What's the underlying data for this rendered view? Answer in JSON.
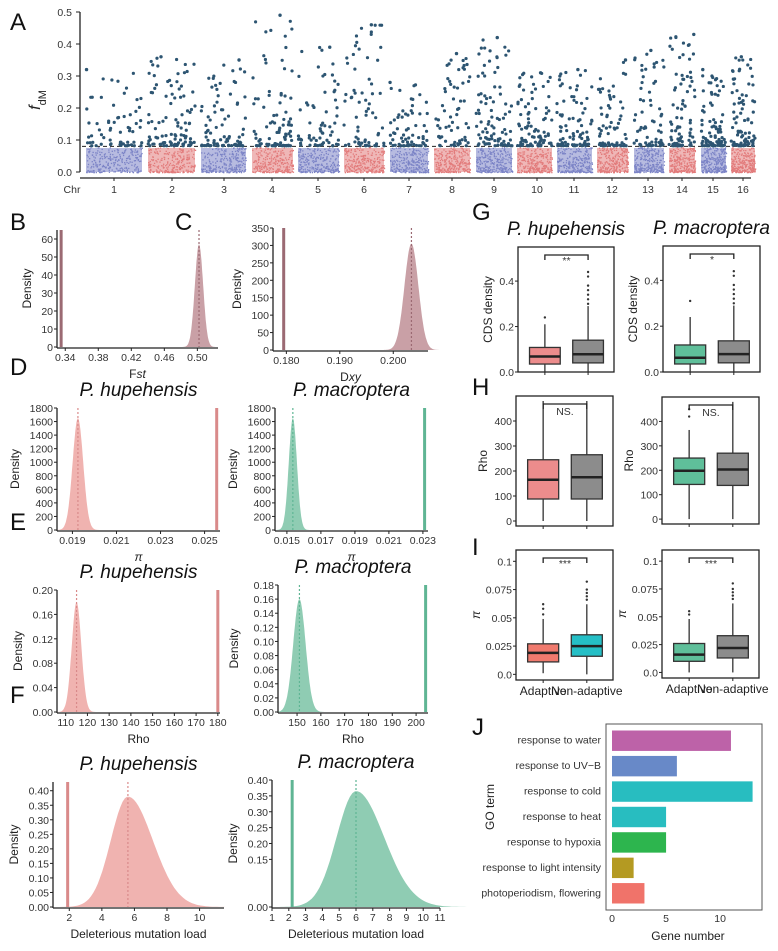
{
  "panel_labels": [
    "A",
    "B",
    "C",
    "D",
    "E",
    "F",
    "G",
    "H",
    "I",
    "J"
  ],
  "colors": {
    "manhattan_high": "#2d5572",
    "manhattan_blue": "#7b83c6",
    "manhattan_red": "#e27b7b",
    "fst_fill": "#c9a0a6",
    "fst_line": "#9b6a73",
    "hup_fill": "#f0b3b0",
    "hup_line": "#d98a8a",
    "mac_fill": "#8fccb3",
    "mac_line": "#5fb594",
    "box_red": "#ec8c8c",
    "box_red2": "#f07a6e",
    "box_green": "#5fbf9a",
    "box_gray": "#8c8c8c",
    "box_teal": "#25bfc6"
  },
  "chart_data": [
    {
      "id": "A",
      "type": "scatter",
      "title": "",
      "xlabel": "Chr",
      "ylabel": "fdM",
      "ylim": [
        0,
        0.5
      ],
      "yticks": [
        "0.0",
        "0.1",
        "0.2",
        "0.3",
        "0.4",
        "0.5"
      ],
      "categories": [
        "1",
        "2",
        "3",
        "4",
        "5",
        "6",
        "7",
        "8",
        "9",
        "10",
        "11",
        "12",
        "13",
        "14",
        "15",
        "16"
      ],
      "threshold": 0.08,
      "max_per_chr": [
        0.32,
        0.36,
        0.35,
        0.49,
        0.39,
        0.46,
        0.28,
        0.37,
        0.42,
        0.31,
        0.32,
        0.35,
        0.38,
        0.43,
        0.32,
        0.36
      ]
    },
    {
      "id": "B",
      "type": "area",
      "xlabel": "Fst",
      "ylabel": "Density",
      "xlim": [
        0.33,
        0.525
      ],
      "ylim": [
        0,
        65
      ],
      "xticks": [
        "0.34",
        "0.38",
        "0.42",
        "0.46",
        "0.50"
      ],
      "yticks": [
        "0",
        "10",
        "20",
        "30",
        "40",
        "50",
        "60"
      ],
      "observed": 0.335,
      "null_mean": 0.502,
      "null_sd": 0.005,
      "peak": 57
    },
    {
      "id": "C",
      "type": "area",
      "xlabel": "Dxy",
      "ylabel": "Density",
      "xlim": [
        0.1775,
        0.2065
      ],
      "ylim": [
        0,
        350
      ],
      "xticks": [
        "0.180",
        "0.190",
        "0.200"
      ],
      "yticks": [
        "0",
        "50",
        "100",
        "150",
        "200",
        "250",
        "300",
        "350"
      ],
      "observed": 0.1795,
      "null_mean": 0.2034,
      "null_sd": 0.0013,
      "peak": 305
    },
    {
      "id": "D1",
      "type": "area",
      "title": "P. hupehensis",
      "xlabel": "π",
      "ylabel": "Density",
      "xlim": [
        0.0183,
        0.0257
      ],
      "ylim": [
        0,
        1800
      ],
      "xticks": [
        "0.019",
        "0.021",
        "0.023",
        "0.025"
      ],
      "yticks": [
        "0",
        "200",
        "400",
        "600",
        "800",
        "1000",
        "1200",
        "1400",
        "1600",
        "1800"
      ],
      "observed": 0.02555,
      "null_mean": 0.01925,
      "null_sd": 0.00024,
      "peak": 1650
    },
    {
      "id": "D2",
      "type": "area",
      "title": "P. macroptera",
      "xlabel": "π",
      "ylabel": "Density",
      "xlim": [
        0.0143,
        0.0233
      ],
      "ylim": [
        0,
        1800
      ],
      "xticks": [
        "0.015",
        "0.017",
        "0.019",
        "0.021",
        "0.023"
      ],
      "yticks": [
        "0",
        "200",
        "400",
        "600",
        "800",
        "1000",
        "1200",
        "1400",
        "1600",
        "1800"
      ],
      "observed": 0.0231,
      "null_mean": 0.01535,
      "null_sd": 0.00024,
      "peak": 1650
    },
    {
      "id": "E1",
      "type": "area",
      "title": "P. hupehensis",
      "xlabel": "Rho",
      "ylabel": "Density",
      "xlim": [
        106,
        181
      ],
      "ylim": [
        0,
        0.2
      ],
      "xticks": [
        "110",
        "120",
        "130",
        "140",
        "150",
        "160",
        "170",
        "180"
      ],
      "yticks": [
        "0.00",
        "0.04",
        "0.08",
        "0.12",
        "0.16",
        "0.20"
      ],
      "observed": 180,
      "null_mean": 115,
      "null_sd": 2.2,
      "peak": 0.18
    },
    {
      "id": "E2",
      "type": "area",
      "title": "P. macroptera",
      "xlabel": "Rho",
      "ylabel": "Density",
      "xlim": [
        142,
        205
      ],
      "ylim": [
        0,
        0.18
      ],
      "xticks": [
        "150",
        "160",
        "170",
        "180",
        "190",
        "200"
      ],
      "yticks": [
        "0.00",
        "0.02",
        "0.04",
        "0.06",
        "0.08",
        "0.10",
        "0.12",
        "0.14",
        "0.16",
        "0.18"
      ],
      "observed": 204,
      "null_mean": 151,
      "null_sd": 2.6,
      "peak": 0.16
    },
    {
      "id": "F1",
      "type": "area",
      "title": "P. hupehensis",
      "xlabel": "Deleterious mutation load",
      "ylabel": "Density",
      "xlim": [
        1,
        11.5
      ],
      "ylim": [
        0,
        0.43
      ],
      "xticks": [
        "2",
        "4",
        "6",
        "8",
        "10"
      ],
      "yticks": [
        "0.00",
        "0.05",
        "0.10",
        "0.15",
        "0.20",
        "0.25",
        "0.30",
        "0.35",
        "0.40"
      ],
      "observed": 1.9,
      "null_mean": 5.6,
      "null_sd": 1.05,
      "peak": 0.38
    },
    {
      "id": "F2",
      "type": "area",
      "title": "P. macroptera",
      "xlabel": "Deleterious mutation load",
      "ylabel": "Density",
      "xlim": [
        1,
        11
      ],
      "ylim": [
        0,
        0.4
      ],
      "xticks": [
        "1",
        "2",
        "3",
        "4",
        "5",
        "6",
        "7",
        "8",
        "9",
        "10",
        "11"
      ],
      "yticks": [
        "0.00",
        "0.15",
        "0.20",
        "0.25",
        "0.30",
        "0.35",
        "0.40"
      ],
      "observed": 2.2,
      "null_mean": 6.0,
      "null_sd": 1.15,
      "peak": 0.365
    },
    {
      "id": "G1",
      "type": "box",
      "title": "P. hupehensis",
      "ylabel": "CDS density",
      "ylim": [
        0,
        0.55
      ],
      "yticks": [
        "0.0",
        "0.2",
        "0.4"
      ],
      "significance": "**",
      "boxes": [
        {
          "name": "Adaptive",
          "q1": 0.035,
          "median": 0.068,
          "q3": 0.108,
          "lo": 0.0,
          "hi": 0.21,
          "outliers": [
            0.24
          ],
          "color": "box_red"
        },
        {
          "name": "Non-adaptive",
          "q1": 0.04,
          "median": 0.078,
          "q3": 0.14,
          "lo": 0.0,
          "hi": 0.29,
          "outliers": [
            0.3,
            0.32,
            0.34,
            0.36,
            0.38,
            0.42,
            0.44
          ],
          "color": "box_gray"
        }
      ]
    },
    {
      "id": "G2",
      "type": "box",
      "title": "P. macroptera",
      "ylabel": "CDS density",
      "ylim": [
        0,
        0.55
      ],
      "yticks": [
        "0.0",
        "0.2",
        "0.4"
      ],
      "significance": "*",
      "boxes": [
        {
          "name": "Adaptive",
          "q1": 0.035,
          "median": 0.062,
          "q3": 0.118,
          "lo": 0.0,
          "hi": 0.24,
          "outliers": [
            0.31
          ],
          "color": "box_green"
        },
        {
          "name": "Non-adaptive",
          "q1": 0.04,
          "median": 0.078,
          "q3": 0.136,
          "lo": 0.0,
          "hi": 0.29,
          "outliers": [
            0.3,
            0.32,
            0.34,
            0.36,
            0.38,
            0.42,
            0.44
          ],
          "color": "box_gray"
        }
      ]
    },
    {
      "id": "H1",
      "type": "box",
      "ylabel": "Rho",
      "ylim": [
        -20,
        500
      ],
      "yticks": [
        "0",
        "100",
        "200",
        "300",
        "400"
      ],
      "significance": "NS.",
      "boxes": [
        {
          "name": "Adaptive",
          "q1": 88,
          "median": 165,
          "q3": 245,
          "lo": 0,
          "hi": 480,
          "outliers": [],
          "color": "box_red"
        },
        {
          "name": "Non-adaptive",
          "q1": 88,
          "median": 175,
          "q3": 265,
          "lo": 0,
          "hi": 480,
          "outliers": [],
          "color": "box_gray"
        }
      ]
    },
    {
      "id": "H2",
      "type": "box",
      "ylabel": "Rho",
      "ylim": [
        -20,
        500
      ],
      "yticks": [
        "0",
        "100",
        "200",
        "300",
        "400"
      ],
      "significance": "NS.",
      "boxes": [
        {
          "name": "Adaptive",
          "q1": 142,
          "median": 198,
          "q3": 250,
          "lo": 0,
          "hi": 365,
          "outliers": [
            420,
            450
          ],
          "color": "box_green"
        },
        {
          "name": "Non-adaptive",
          "q1": 138,
          "median": 203,
          "q3": 270,
          "lo": 0,
          "hi": 480,
          "outliers": [],
          "color": "box_gray"
        }
      ]
    },
    {
      "id": "I1",
      "type": "box",
      "ylabel": "π",
      "ylim": [
        -0.005,
        0.11
      ],
      "yticks": [
        "0.0",
        "0.025",
        "0.05",
        "0.075",
        "0.1"
      ],
      "significance": "***",
      "categories": [
        "Adaptive",
        "Non-adaptive"
      ],
      "boxes": [
        {
          "name": "Adaptive",
          "q1": 0.011,
          "median": 0.019,
          "q3": 0.027,
          "lo": 0.001,
          "hi": 0.049,
          "outliers": [
            0.053,
            0.058,
            0.062
          ],
          "color": "box_red2"
        },
        {
          "name": "Non-adaptive",
          "q1": 0.016,
          "median": 0.025,
          "q3": 0.035,
          "lo": 0.0,
          "hi": 0.062,
          "outliers": [
            0.066,
            0.069,
            0.072,
            0.075,
            0.082
          ],
          "color": "box_teal"
        }
      ]
    },
    {
      "id": "I2",
      "type": "box",
      "ylabel": "π",
      "ylim": [
        -0.005,
        0.11
      ],
      "yticks": [
        "0.0",
        "0.025",
        "0.05",
        "0.075",
        "0.1"
      ],
      "significance": "***",
      "categories": [
        "Adaptive",
        "Non-adaptive"
      ],
      "boxes": [
        {
          "name": "Adaptive",
          "q1": 0.01,
          "median": 0.016,
          "q3": 0.026,
          "lo": 0.0,
          "hi": 0.048,
          "outliers": [
            0.052,
            0.055
          ],
          "color": "box_green"
        },
        {
          "name": "Non-adaptive",
          "q1": 0.013,
          "median": 0.022,
          "q3": 0.033,
          "lo": 0.0,
          "hi": 0.062,
          "outliers": [
            0.066,
            0.069,
            0.072,
            0.075,
            0.08
          ],
          "color": "box_gray"
        }
      ]
    },
    {
      "id": "J",
      "type": "bar",
      "orientation": "horizontal",
      "xlabel": "Gene number",
      "ylabel": "GO term",
      "xlim": [
        0,
        13.5
      ],
      "xticks": [
        "0",
        "5",
        "10"
      ],
      "categories": [
        "response to water",
        "response to UV−B",
        "response to cold",
        "response to heat",
        "response to hypoxia",
        "response to light intensity",
        "photoperiodism, flowering"
      ],
      "values": [
        11,
        6,
        13,
        5,
        5,
        2,
        3
      ],
      "bar_colors": [
        "#bd62a8",
        "#6889c8",
        "#28bdc0",
        "#28bdc0",
        "#2db54e",
        "#b49a22",
        "#f0736a"
      ]
    }
  ]
}
